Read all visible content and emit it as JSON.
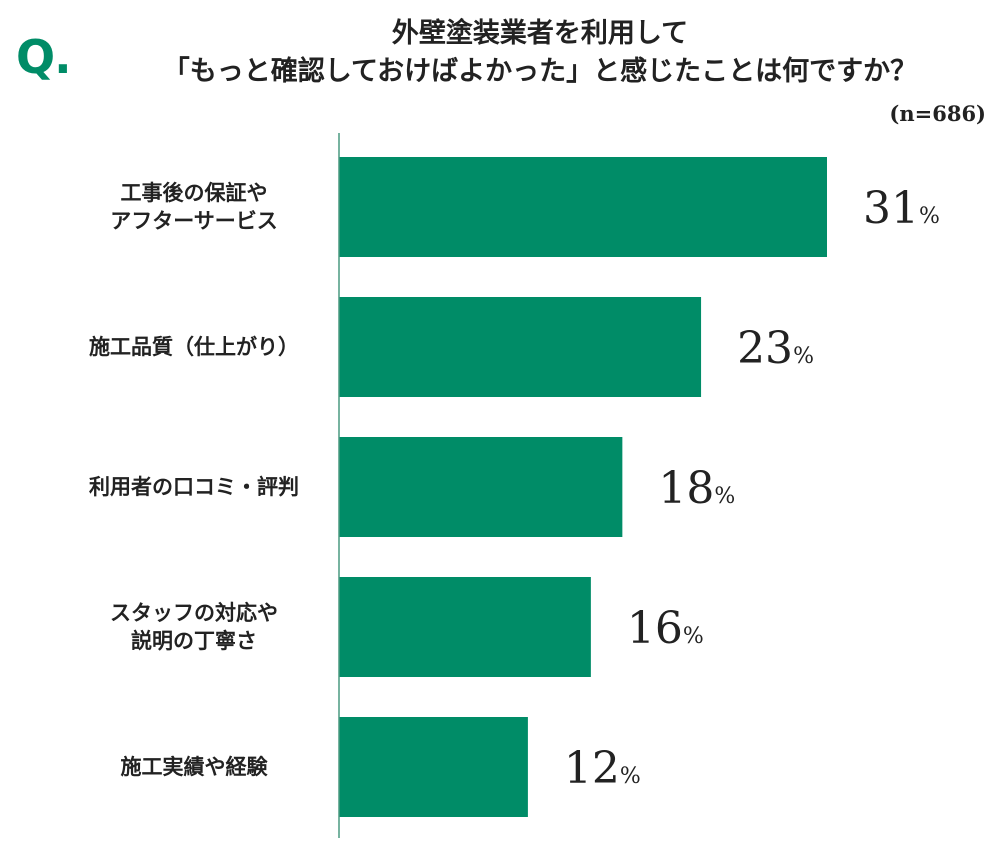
{
  "question_mark": "Q.",
  "title_line1": "外壁塗装業者を利用して",
  "title_line2": "「もっと確認しておけばよかった」と感じたことは何ですか？",
  "sample_size": "(n=686)",
  "colors": {
    "bar": "#008c67",
    "accent": "#008c67",
    "axis": "#4a9a80"
  },
  "chart_data": {
    "type": "bar",
    "orientation": "horizontal",
    "title": "外壁塗装業者を利用して「もっと確認しておけばよかった」と感じたことは何ですか？",
    "categories": [
      [
        "工事後の保証や",
        "アフターサービス"
      ],
      [
        "施工品質（仕上がり）"
      ],
      [
        "利用者の口コミ・評判"
      ],
      [
        "スタッフの対応や",
        "説明の丁寧さ"
      ],
      [
        "施工実績や経験"
      ]
    ],
    "values": [
      31,
      23,
      18,
      16,
      12
    ],
    "unit": "%",
    "xlim": [
      0,
      31
    ],
    "grid": false,
    "legend": "none"
  }
}
